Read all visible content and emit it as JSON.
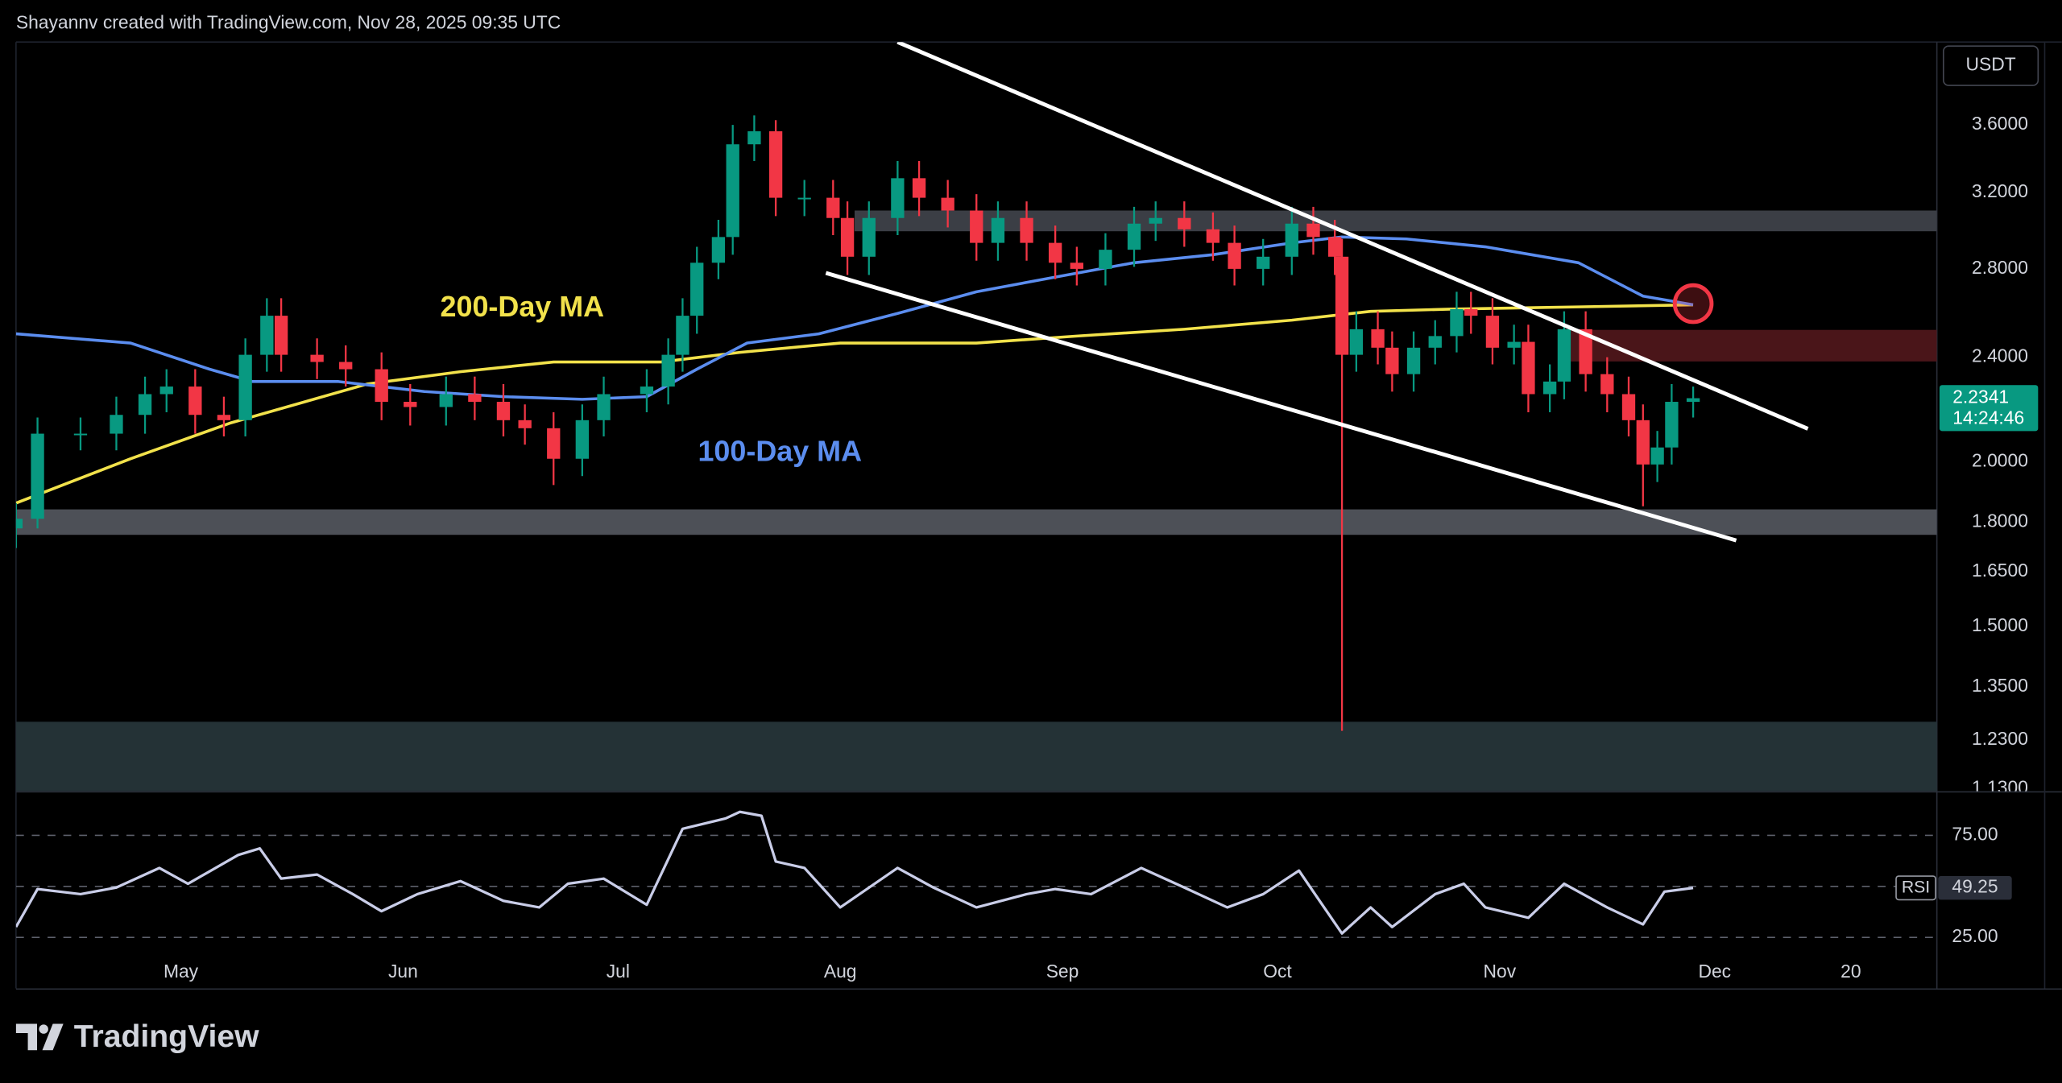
{
  "header": "Shayannv created with TradingView.com, Nov 28, 2025 09:35 UTC",
  "brand": "TradingView",
  "chart_data": {
    "type": "candlestick",
    "currency": "USDT",
    "log_scale": true,
    "xlim": [
      -23,
      245
    ],
    "xticks": [
      {
        "value": 0,
        "label": "May"
      },
      {
        "value": 31,
        "label": "Jun"
      },
      {
        "value": 61,
        "label": "Jul"
      },
      {
        "value": 92,
        "label": "Aug"
      },
      {
        "value": 123,
        "label": "Sep"
      },
      {
        "value": 153,
        "label": "Oct"
      },
      {
        "value": 184,
        "label": "Nov"
      },
      {
        "value": 214,
        "label": "Dec"
      },
      {
        "value": 233,
        "label": "20"
      }
    ],
    "ylim": [
      1.125,
      4.16
    ],
    "yticks": [
      {
        "value": 3.6,
        "label": "3.6000"
      },
      {
        "value": 3.2,
        "label": "3.2000"
      },
      {
        "value": 2.8,
        "label": "2.8000"
      },
      {
        "value": 2.4,
        "label": "2.4000"
      },
      {
        "value": 2.0,
        "label": "2.0000"
      },
      {
        "value": 1.8,
        "label": "1.8000"
      },
      {
        "value": 1.65,
        "label": "1.6500"
      },
      {
        "value": 1.5,
        "label": "1.5000"
      },
      {
        "value": 1.35,
        "label": "1.3500"
      },
      {
        "value": 1.23,
        "label": "1.2300"
      },
      {
        "value": 1.13,
        "label": "1.1300"
      }
    ],
    "up_color": "#089981",
    "down_color": "#f23645",
    "candles": {
      "x": [
        -23,
        -20,
        -14,
        -9,
        -5,
        -2,
        2,
        6,
        9,
        12,
        14,
        19,
        23,
        28,
        32,
        37,
        41,
        45,
        48,
        52,
        56,
        59,
        65,
        68,
        70,
        72,
        75,
        77,
        80,
        83,
        87,
        91,
        93,
        96,
        100,
        103,
        107,
        111,
        114,
        118,
        122,
        125,
        129,
        133,
        136,
        140,
        144,
        147,
        151,
        155,
        158,
        161,
        162,
        164,
        167,
        169,
        172,
        175,
        178,
        180,
        183,
        186,
        188,
        191,
        193,
        196,
        199,
        202,
        204,
        206,
        208,
        211
      ],
      "open": [
        1.78,
        1.81,
        2.1,
        2.1,
        2.17,
        2.25,
        2.28,
        2.17,
        2.15,
        2.41,
        2.58,
        2.41,
        2.38,
        2.35,
        2.22,
        2.2,
        2.25,
        2.22,
        2.15,
        2.12,
        2.01,
        2.15,
        2.25,
        2.28,
        2.41,
        2.58,
        2.83,
        2.96,
        3.48,
        3.56,
        3.17,
        3.17,
        3.06,
        2.86,
        3.06,
        3.28,
        3.17,
        3.1,
        2.93,
        3.06,
        2.93,
        2.83,
        2.8,
        2.895,
        3.03,
        3.06,
        3.0,
        2.93,
        2.8,
        2.86,
        3.03,
        2.96,
        2.86,
        2.41,
        2.52,
        2.44,
        2.33,
        2.44,
        2.49,
        2.61,
        2.58,
        2.44,
        2.465,
        2.25,
        2.3,
        2.52,
        2.33,
        2.25,
        2.15,
        1.99,
        2.05,
        2.22
      ],
      "high": [
        1.86,
        2.16,
        2.16,
        2.24,
        2.32,
        2.35,
        2.35,
        2.24,
        2.48,
        2.66,
        2.66,
        2.48,
        2.45,
        2.42,
        2.29,
        2.32,
        2.32,
        2.29,
        2.21,
        2.18,
        2.21,
        2.32,
        2.35,
        2.48,
        2.66,
        2.91,
        3.05,
        3.6,
        3.66,
        3.63,
        3.27,
        3.27,
        3.15,
        3.15,
        3.38,
        3.38,
        3.27,
        3.19,
        3.15,
        3.15,
        3.02,
        2.91,
        2.98,
        3.12,
        3.15,
        3.15,
        3.09,
        3.02,
        2.95,
        3.12,
        3.12,
        3.05,
        2.95,
        2.6,
        2.6,
        2.51,
        2.51,
        2.56,
        2.69,
        2.69,
        2.66,
        2.54,
        2.54,
        2.37,
        2.6,
        2.6,
        2.4,
        2.32,
        2.21,
        2.11,
        2.29,
        2.28
      ],
      "low": [
        1.72,
        1.78,
        2.04,
        2.04,
        2.1,
        2.18,
        2.1,
        2.09,
        2.09,
        2.34,
        2.34,
        2.31,
        2.28,
        2.15,
        2.13,
        2.13,
        2.15,
        2.09,
        2.06,
        1.92,
        1.95,
        2.09,
        2.18,
        2.21,
        2.34,
        2.5,
        2.75,
        2.87,
        3.38,
        3.07,
        3.07,
        2.97,
        2.77,
        2.77,
        2.97,
        3.07,
        3.01,
        2.84,
        2.84,
        2.84,
        2.75,
        2.72,
        2.72,
        2.81,
        2.94,
        2.91,
        2.84,
        2.72,
        2.72,
        2.77,
        2.87,
        2.77,
        1.25,
        2.34,
        2.37,
        2.26,
        2.26,
        2.37,
        2.42,
        2.5,
        2.37,
        2.37,
        2.18,
        2.18,
        2.23,
        2.26,
        2.18,
        2.09,
        1.85,
        1.93,
        1.99,
        2.16
      ],
      "close": [
        1.81,
        2.1,
        2.1,
        2.17,
        2.25,
        2.28,
        2.17,
        2.15,
        2.41,
        2.58,
        2.41,
        2.38,
        2.35,
        2.22,
        2.2,
        2.25,
        2.22,
        2.15,
        2.12,
        2.01,
        2.15,
        2.25,
        2.28,
        2.41,
        2.58,
        2.83,
        2.96,
        3.48,
        3.56,
        3.17,
        3.17,
        3.06,
        2.86,
        3.06,
        3.28,
        3.17,
        3.1,
        2.93,
        3.06,
        2.93,
        2.83,
        2.8,
        2.895,
        3.03,
        3.06,
        3.0,
        2.93,
        2.8,
        2.86,
        3.03,
        2.96,
        2.86,
        2.41,
        2.52,
        2.44,
        2.33,
        2.44,
        2.49,
        2.61,
        2.58,
        2.44,
        2.465,
        2.25,
        2.3,
        2.52,
        2.33,
        2.25,
        2.15,
        1.99,
        2.05,
        2.22,
        2.2341
      ]
    },
    "series": [
      {
        "name": "200-Day MA",
        "color": "#f2e24b",
        "x": [
          -23,
          -7,
          7,
          26,
          39,
          52,
          67,
          78,
          92,
          111,
          125,
          140,
          155,
          166,
          177,
          195,
          211
        ],
        "values": [
          1.86,
          2.01,
          2.14,
          2.29,
          2.34,
          2.38,
          2.38,
          2.42,
          2.46,
          2.46,
          2.49,
          2.52,
          2.56,
          2.6,
          2.61,
          2.62,
          2.63
        ]
      },
      {
        "name": "100-Day MA",
        "color": "#5b8def",
        "x": [
          -23,
          -7,
          4,
          10,
          22,
          34,
          45,
          56,
          65,
          72,
          79,
          89,
          100,
          111,
          122,
          133,
          144,
          155,
          162,
          171,
          182,
          195,
          204,
          211
        ],
        "values": [
          2.5,
          2.46,
          2.35,
          2.3,
          2.3,
          2.26,
          2.24,
          2.23,
          2.24,
          2.35,
          2.46,
          2.5,
          2.59,
          2.69,
          2.76,
          2.83,
          2.87,
          2.93,
          2.96,
          2.95,
          2.91,
          2.83,
          2.67,
          2.63
        ]
      }
    ],
    "zones": [
      {
        "from": 2.99,
        "to": 3.1,
        "x_start": 94,
        "color": "#3b3e45"
      },
      {
        "from": 2.382,
        "to": 2.517,
        "x_start": 193,
        "color": "#4a1519"
      },
      {
        "from": 1.76,
        "to": 1.84,
        "color": "#4d5057"
      },
      {
        "from": 1.125,
        "to": 1.27,
        "color": "#243236"
      }
    ],
    "trendlines": [
      {
        "x": [
          100,
          227
        ],
        "values": [
          4.16,
          2.118
        ],
        "color": "#ffffff"
      },
      {
        "x": [
          90,
          217
        ],
        "values": [
          2.78,
          1.743
        ],
        "color": "#ffffff"
      }
    ],
    "marker": {
      "x": 211,
      "value": 2.635,
      "color": "#f23645"
    },
    "last_price": 2.2341,
    "countdown": "14:24:46",
    "rsi": {
      "name": "RSI",
      "color": "#c9cde8",
      "ylim": [
        0,
        96
      ],
      "yticks": [
        {
          "value": 75,
          "label": "75.00"
        },
        {
          "value": 25,
          "label": "25.00"
        }
      ],
      "levels": [
        25,
        50,
        75
      ],
      "x": [
        -23,
        -20,
        -14,
        -9,
        -3,
        1,
        8,
        11,
        14,
        19,
        24,
        28,
        33,
        39,
        45,
        50,
        54,
        59,
        65,
        70,
        76,
        78,
        81,
        83,
        87,
        92,
        100,
        105,
        111,
        118,
        122,
        127,
        134,
        140,
        146,
        151,
        156,
        158,
        162,
        166,
        169,
        175,
        179,
        182,
        188,
        193,
        199,
        204,
        207,
        211
      ],
      "values": [
        30.1,
        48.7,
        46.2,
        49.4,
        59.0,
        51.3,
        65.4,
        68.6,
        53.8,
        55.8,
        46.2,
        37.8,
        46.2,
        52.6,
        42.9,
        39.7,
        51.3,
        53.8,
        41.0,
        78.2,
        83.3,
        86.5,
        84.6,
        62.2,
        59.0,
        39.7,
        59.0,
        49.4,
        39.7,
        46.2,
        48.7,
        46.2,
        59.0,
        49.4,
        39.7,
        46.2,
        57.7,
        47.4,
        26.9,
        39.7,
        30.1,
        46.2,
        51.3,
        39.7,
        34.6,
        51.3,
        39.7,
        31.4,
        47.4,
        49.25
      ],
      "last": 49.25
    }
  }
}
